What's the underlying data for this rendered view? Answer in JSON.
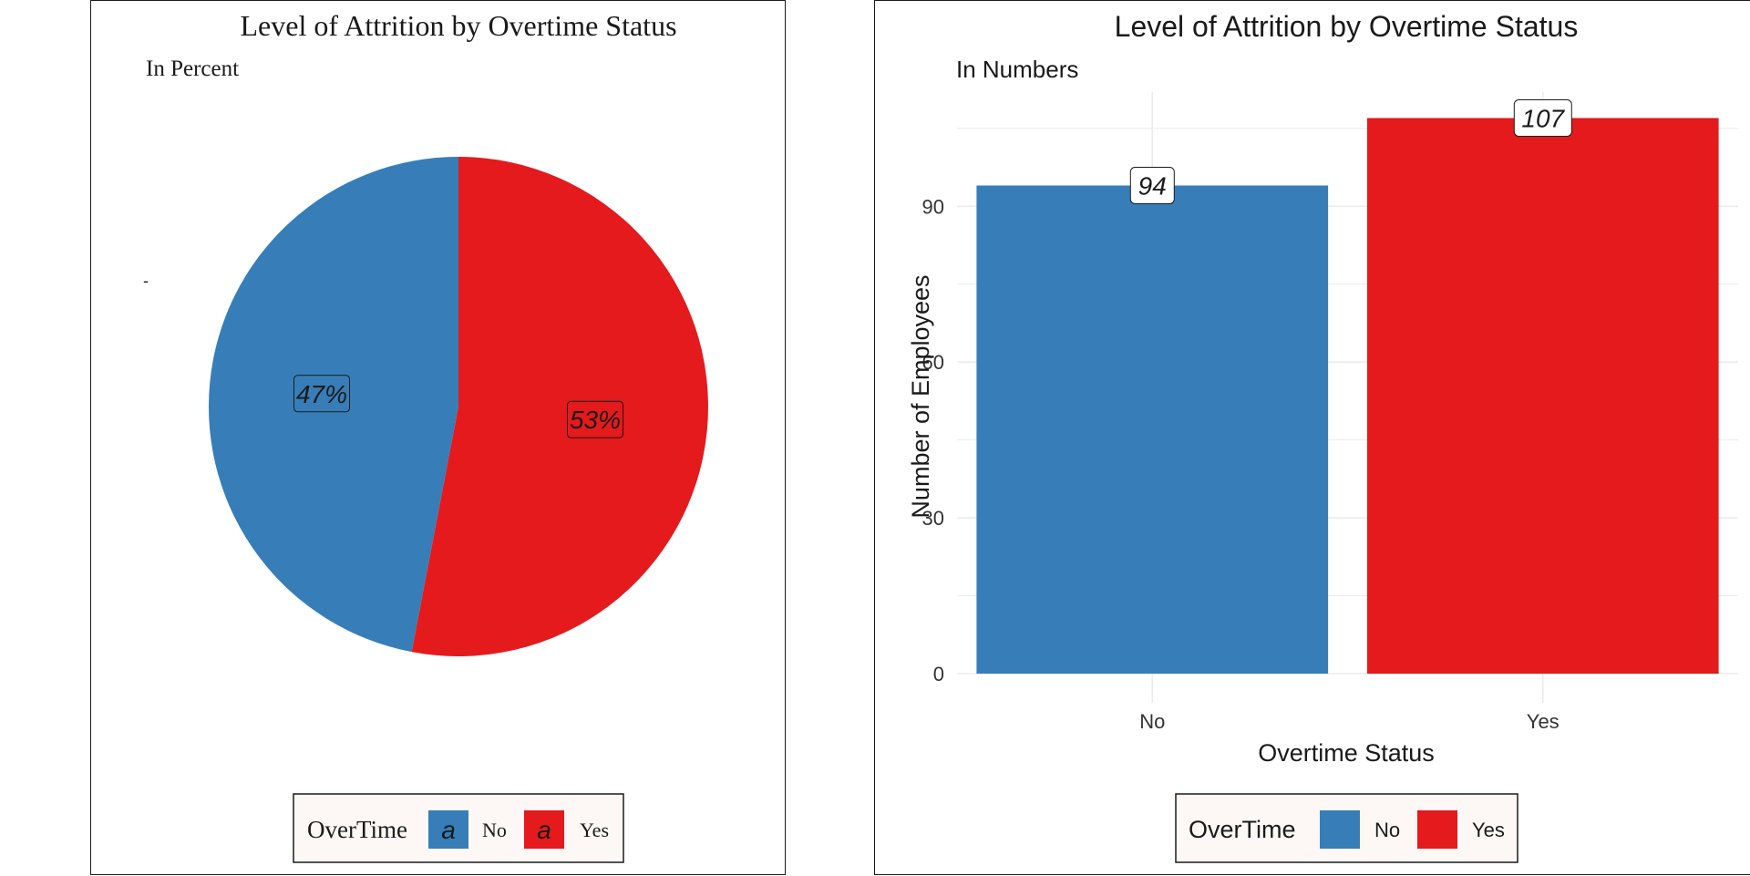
{
  "colors": {
    "no": "#377EB8",
    "yes": "#E41A1C",
    "grid": "#EBEBEB",
    "legend_bg": "#FDF8F5"
  },
  "legend": {
    "title": "OverTime",
    "key_glyph": "a",
    "items": [
      {
        "label": "No",
        "color": "#377EB8"
      },
      {
        "label": "Yes",
        "color": "#E41A1C"
      }
    ]
  },
  "stray_mark": "-",
  "chart_data": [
    {
      "type": "pie",
      "title": "Level of Attrition by Overtime Status",
      "subtitle": "In Percent",
      "slices": [
        {
          "label": "No",
          "value": 47,
          "display": "47%"
        },
        {
          "label": "Yes",
          "value": 53,
          "display": "53%"
        }
      ]
    },
    {
      "type": "bar",
      "title": "Level of Attrition by Overtime Status",
      "subtitle": "In Numbers",
      "categories": [
        "No",
        "Yes"
      ],
      "values": [
        94,
        107
      ],
      "value_labels": [
        "94",
        "107"
      ],
      "xlabel": "Overtime Status",
      "ylabel": "Number of Employees",
      "yticks": [
        0,
        30,
        60,
        90
      ],
      "ylim": [
        0,
        112
      ],
      "grid": true
    }
  ]
}
